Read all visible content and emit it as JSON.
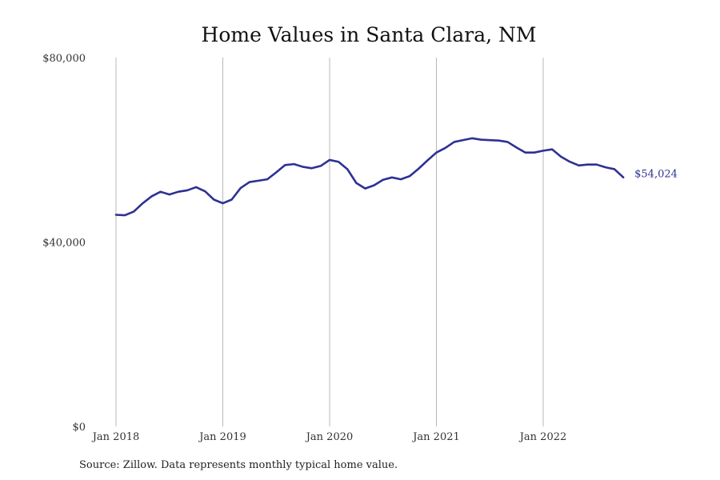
{
  "chart_data": {
    "type": "line",
    "title": "Home Values in Santa Clara, NM",
    "source": "Source: Zillow. Data represents monthly typical home value.",
    "ylim": [
      0,
      80000
    ],
    "yticks": [
      0,
      40000,
      80000
    ],
    "ytick_labels": [
      "$0",
      "$40,000",
      "$80,000"
    ],
    "xticks": [
      "2018-01",
      "2019-01",
      "2020-01",
      "2021-01",
      "2022-01"
    ],
    "xtick_labels": [
      "Jan 2018",
      "Jan 2019",
      "Jan 2020",
      "Jan 2021",
      "Jan 2022"
    ],
    "grid": "vertical",
    "color": "#2e3192",
    "end_label": "$54,024",
    "series": [
      {
        "x": [
          "2018-01",
          "2018-02",
          "2018-03",
          "2018-04",
          "2018-05",
          "2018-06",
          "2018-07",
          "2018-08",
          "2018-09",
          "2018-10",
          "2018-11",
          "2018-12",
          "2019-01",
          "2019-02",
          "2019-03",
          "2019-04",
          "2019-05",
          "2019-06",
          "2019-07",
          "2019-08",
          "2019-09",
          "2019-10",
          "2019-11",
          "2019-12",
          "2020-01",
          "2020-02",
          "2020-03",
          "2020-04",
          "2020-05",
          "2020-06",
          "2020-07",
          "2020-08",
          "2020-09",
          "2020-10",
          "2020-11",
          "2020-12",
          "2021-01",
          "2021-02",
          "2021-03",
          "2021-04",
          "2021-05",
          "2021-06",
          "2021-07",
          "2021-08",
          "2021-09",
          "2021-10",
          "2021-11",
          "2021-12",
          "2022-01",
          "2022-02",
          "2022-03",
          "2022-04",
          "2022-05",
          "2022-06",
          "2022-07",
          "2022-08",
          "2022-09",
          "2022-10"
        ],
        "values": [
          45900,
          45800,
          46600,
          48400,
          49900,
          50900,
          50300,
          50900,
          51200,
          51900,
          51000,
          49200,
          48400,
          49200,
          51700,
          53000,
          53300,
          53600,
          55100,
          56700,
          56900,
          56300,
          56000,
          56500,
          57800,
          57400,
          55800,
          52800,
          51600,
          52300,
          53500,
          54000,
          53600,
          54300,
          55900,
          57700,
          59400,
          60400,
          61700,
          62100,
          62500,
          62200,
          62100,
          62000,
          61700,
          60500,
          59400,
          59400,
          59800,
          60100,
          58500,
          57400,
          56600,
          56800,
          56800,
          56200,
          55800,
          54024
        ]
      }
    ]
  }
}
